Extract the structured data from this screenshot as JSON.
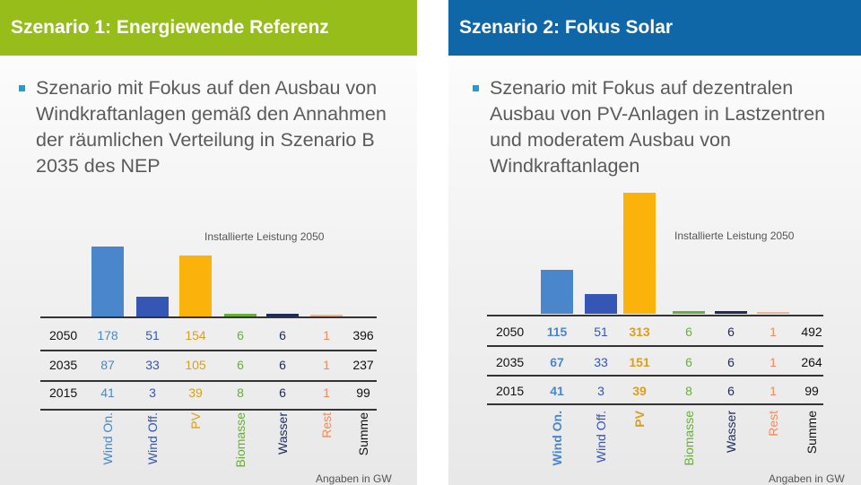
{
  "colors": {
    "wind_on": "#4a86cc",
    "wind_off": "#3556b4",
    "pv": "#fbb20a",
    "pv_text": "#d9a020",
    "biomasse": "#6aad3a",
    "wasser": "#1c2a5c",
    "rest": "#f08a5a",
    "summe": "#111111",
    "header1": "#97bd1a",
    "header2": "#0f67a8"
  },
  "panels": [
    {
      "title": "Szenario 1: Energiewende Referenz",
      "bullet": "Szenario mit Fokus auf den Ausbau von Windkraftanlagen gemäß den Annahmen der räumlichen Verteilung in Szenario B 2035 des NEP"
    },
    {
      "title": "Szenario 2: Fokus Solar",
      "bullet": "Szenario mit Fokus auf dezentralen Ausbau von PV-Anlagen in Lastzentren und moderatem Ausbau von Windkraftanlagen"
    }
  ],
  "chart_data": [
    {
      "type": "bar",
      "title": "Installierte Leistung 2050",
      "unit_note": "Angaben in GW",
      "categories": [
        "Wind On.",
        "Wind Off.",
        "PV",
        "Biomasse",
        "Wasser",
        "Rest"
      ],
      "values": [
        178,
        51,
        154,
        6,
        6,
        1
      ],
      "table": {
        "columns": [
          "Wind On.",
          "Wind Off.",
          "PV",
          "Biomasse",
          "Wasser",
          "Rest",
          "Summe"
        ],
        "rows": [
          {
            "year": "2050",
            "values": [
              178,
              51,
              154,
              6,
              6,
              1,
              396
            ]
          },
          {
            "year": "2035",
            "values": [
              87,
              33,
              105,
              6,
              6,
              1,
              237
            ]
          },
          {
            "year": "2015",
            "values": [
              41,
              3,
              39,
              8,
              6,
              1,
              99
            ]
          }
        ]
      },
      "bold_columns": []
    },
    {
      "type": "bar",
      "title": "Installierte Leistung 2050",
      "unit_note": "Angaben in GW",
      "categories": [
        "Wind On.",
        "Wind Off.",
        "PV",
        "Biomasse",
        "Wasser",
        "Rest"
      ],
      "values": [
        115,
        51,
        313,
        6,
        6,
        1
      ],
      "table": {
        "columns": [
          "Wind On.",
          "Wind Off.",
          "PV",
          "Biomasse",
          "Wasser",
          "Rest",
          "Summe"
        ],
        "rows": [
          {
            "year": "2050",
            "values": [
              115,
              51,
              313,
              6,
              6,
              1,
              492
            ]
          },
          {
            "year": "2035",
            "values": [
              67,
              33,
              151,
              6,
              6,
              1,
              264
            ]
          },
          {
            "year": "2015",
            "values": [
              41,
              3,
              39,
              8,
              6,
              1,
              99
            ]
          }
        ]
      },
      "bold_columns": [
        0,
        2
      ]
    }
  ]
}
